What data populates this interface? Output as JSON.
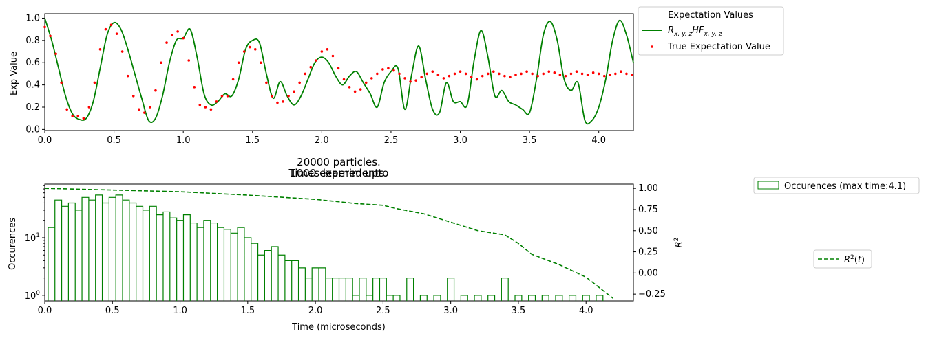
{
  "colors": {
    "model": "#008000",
    "true": "#ff0000",
    "hist": "#008000",
    "r2": "#008000"
  },
  "chart_data": [
    {
      "type": "line",
      "title": "",
      "xlabel": "",
      "ylabel": "Exp Value",
      "xlim": [
        0,
        4.25
      ],
      "ylim": [
        -0.01,
        1.04
      ],
      "xticks": [
        "0.0",
        "0.5",
        "1.0",
        "1.5",
        "2.0",
        "2.5",
        "3.0",
        "3.5",
        "4.0"
      ],
      "yticks": [
        "0.0",
        "0.2",
        "0.4",
        "0.6",
        "0.8",
        "1.0"
      ],
      "legend_title": "Expectation Values",
      "legend_position": "outside-upper-right",
      "series": [
        {
          "name": "R_{x,y,z}HF_{x,y,z}",
          "kind": "line",
          "x": [
            0.0,
            0.05,
            0.1,
            0.15,
            0.2,
            0.25,
            0.3,
            0.35,
            0.4,
            0.45,
            0.5,
            0.55,
            0.6,
            0.65,
            0.7,
            0.75,
            0.8,
            0.85,
            0.9,
            0.95,
            1.0,
            1.05,
            1.1,
            1.15,
            1.2,
            1.25,
            1.3,
            1.35,
            1.4,
            1.45,
            1.5,
            1.55,
            1.6,
            1.65,
            1.7,
            1.75,
            1.8,
            1.85,
            1.9,
            1.95,
            2.0,
            2.05,
            2.1,
            2.15,
            2.2,
            2.25,
            2.3,
            2.35,
            2.4,
            2.45,
            2.5,
            2.55,
            2.6,
            2.65,
            2.7,
            2.75,
            2.8,
            2.85,
            2.9,
            2.95,
            3.0,
            3.05,
            3.1,
            3.15,
            3.2,
            3.25,
            3.3,
            3.35,
            3.4,
            3.45,
            3.5,
            3.55,
            3.6,
            3.65,
            3.7,
            3.75,
            3.8,
            3.85,
            3.9,
            3.95,
            4.0,
            4.05,
            4.1,
            4.15,
            4.2,
            4.25
          ],
          "y": [
            1.0,
            0.8,
            0.55,
            0.3,
            0.14,
            0.09,
            0.1,
            0.25,
            0.55,
            0.85,
            0.96,
            0.9,
            0.72,
            0.5,
            0.28,
            0.08,
            0.1,
            0.3,
            0.6,
            0.8,
            0.82,
            0.9,
            0.65,
            0.32,
            0.22,
            0.25,
            0.32,
            0.3,
            0.45,
            0.72,
            0.8,
            0.78,
            0.5,
            0.28,
            0.43,
            0.3,
            0.22,
            0.3,
            0.45,
            0.6,
            0.65,
            0.6,
            0.48,
            0.4,
            0.48,
            0.52,
            0.42,
            0.32,
            0.2,
            0.42,
            0.52,
            0.55,
            0.18,
            0.5,
            0.75,
            0.45,
            0.18,
            0.15,
            0.42,
            0.25,
            0.25,
            0.22,
            0.62,
            0.89,
            0.65,
            0.3,
            0.35,
            0.25,
            0.22,
            0.18,
            0.15,
            0.45,
            0.85,
            0.97,
            0.8,
            0.45,
            0.35,
            0.42,
            0.08,
            0.08,
            0.2,
            0.45,
            0.8,
            0.98,
            0.85,
            0.6
          ]
        },
        {
          "name": "True Expectation Value",
          "kind": "scatter",
          "x": [
            0.0,
            0.04,
            0.08,
            0.12,
            0.16,
            0.2,
            0.24,
            0.28,
            0.32,
            0.36,
            0.4,
            0.44,
            0.48,
            0.52,
            0.56,
            0.6,
            0.64,
            0.68,
            0.72,
            0.76,
            0.8,
            0.84,
            0.88,
            0.92,
            0.96,
            1.0,
            1.04,
            1.08,
            1.12,
            1.16,
            1.2,
            1.24,
            1.28,
            1.32,
            1.36,
            1.4,
            1.44,
            1.48,
            1.52,
            1.56,
            1.6,
            1.64,
            1.68,
            1.72,
            1.76,
            1.8,
            1.84,
            1.88,
            1.92,
            1.96,
            2.0,
            2.04,
            2.08,
            2.12,
            2.16,
            2.2,
            2.24,
            2.28,
            2.32,
            2.36,
            2.4,
            2.44,
            2.48,
            2.52,
            2.56,
            2.6,
            2.64,
            2.68,
            2.72,
            2.76,
            2.8,
            2.84,
            2.88,
            2.92,
            2.96,
            3.0,
            3.04,
            3.08,
            3.12,
            3.16,
            3.2,
            3.24,
            3.28,
            3.32,
            3.36,
            3.4,
            3.44,
            3.48,
            3.52,
            3.56,
            3.6,
            3.64,
            3.68,
            3.72,
            3.76,
            3.8,
            3.84,
            3.88,
            3.92,
            3.96,
            4.0,
            4.04,
            4.08,
            4.12,
            4.16,
            4.2,
            4.24
          ],
          "y": [
            0.92,
            0.84,
            0.68,
            0.42,
            0.18,
            0.12,
            0.12,
            0.1,
            0.2,
            0.42,
            0.72,
            0.9,
            0.94,
            0.86,
            0.7,
            0.48,
            0.3,
            0.18,
            0.15,
            0.2,
            0.35,
            0.6,
            0.78,
            0.85,
            0.88,
            0.82,
            0.62,
            0.38,
            0.22,
            0.2,
            0.18,
            0.25,
            0.3,
            0.3,
            0.45,
            0.6,
            0.7,
            0.74,
            0.72,
            0.6,
            0.42,
            0.3,
            0.24,
            0.25,
            0.3,
            0.34,
            0.42,
            0.5,
            0.56,
            0.62,
            0.7,
            0.72,
            0.66,
            0.55,
            0.45,
            0.38,
            0.34,
            0.36,
            0.42,
            0.46,
            0.5,
            0.54,
            0.55,
            0.53,
            0.5,
            0.46,
            0.43,
            0.44,
            0.47,
            0.5,
            0.52,
            0.49,
            0.46,
            0.48,
            0.5,
            0.52,
            0.5,
            0.47,
            0.45,
            0.48,
            0.5,
            0.52,
            0.5,
            0.48,
            0.47,
            0.49,
            0.5,
            0.52,
            0.5,
            0.48,
            0.5,
            0.52,
            0.51,
            0.49,
            0.48,
            0.5,
            0.52,
            0.5,
            0.49,
            0.51,
            0.5,
            0.48,
            0.49,
            0.5,
            0.52,
            0.5,
            0.49
          ]
        }
      ]
    },
    {
      "type": "bar",
      "title": "Times learned upto",
      "title_lines": [
        "20000 particles.",
        "1000 experiments.",
        "Times learned upto"
      ],
      "xlabel": "Time (microseconds)",
      "ylabel": "Occurences",
      "y2label": "R^2",
      "xlim": [
        0,
        4.35
      ],
      "yscale": "log",
      "ylim": [
        0.8,
        85
      ],
      "y2lim": [
        -0.33,
        1.05
      ],
      "xticks": [
        "0.0",
        "0.5",
        "1.0",
        "1.5",
        "2.0",
        "2.5",
        "3.0",
        "3.5",
        "4.0"
      ],
      "yticks": [
        "10^0",
        "10^1"
      ],
      "y2ticks": [
        "−0.25",
        "0.00",
        "0.25",
        "0.50",
        "0.75",
        "1.00"
      ],
      "series": [
        {
          "name": "Occurences (max time:4.1)",
          "kind": "histogram",
          "legend_position": "outside-upper-right",
          "x": [
            0.05,
            0.1,
            0.15,
            0.2,
            0.25,
            0.3,
            0.35,
            0.4,
            0.45,
            0.5,
            0.55,
            0.6,
            0.65,
            0.7,
            0.75,
            0.8,
            0.85,
            0.9,
            0.95,
            1.0,
            1.05,
            1.1,
            1.15,
            1.2,
            1.25,
            1.3,
            1.35,
            1.4,
            1.45,
            1.5,
            1.55,
            1.6,
            1.65,
            1.7,
            1.75,
            1.8,
            1.85,
            1.9,
            1.95,
            2.0,
            2.05,
            2.1,
            2.15,
            2.2,
            2.25,
            2.3,
            2.35,
            2.4,
            2.45,
            2.5,
            2.55,
            2.6,
            2.7,
            2.8,
            2.9,
            3.0,
            3.1,
            3.2,
            3.3,
            3.4,
            3.5,
            3.6,
            3.7,
            3.8,
            3.9,
            4.0,
            4.1
          ],
          "values": [
            15,
            45,
            35,
            40,
            30,
            50,
            45,
            55,
            40,
            50,
            55,
            45,
            40,
            35,
            30,
            35,
            25,
            28,
            22,
            20,
            25,
            18,
            15,
            20,
            18,
            15,
            14,
            12,
            15,
            10,
            8,
            5,
            6,
            7,
            5,
            4,
            4,
            3,
            2,
            3,
            3,
            2,
            2,
            2,
            2,
            1,
            2,
            1,
            2,
            2,
            1,
            1,
            2,
            1,
            1,
            2,
            1,
            1,
            1,
            2,
            1,
            1,
            1,
            1,
            1,
            1,
            1
          ]
        },
        {
          "name": "R^2(t)",
          "kind": "line",
          "legend_position": "outside-right",
          "x": [
            0.0,
            0.5,
            1.0,
            1.5,
            2.0,
            2.3,
            2.5,
            2.6,
            2.8,
            3.0,
            3.2,
            3.4,
            3.5,
            3.6,
            3.8,
            4.0,
            4.2
          ],
          "values": [
            1.0,
            0.98,
            0.96,
            0.92,
            0.87,
            0.82,
            0.8,
            0.76,
            0.7,
            0.6,
            0.5,
            0.45,
            0.35,
            0.22,
            0.1,
            -0.05,
            -0.3
          ]
        }
      ]
    }
  ]
}
